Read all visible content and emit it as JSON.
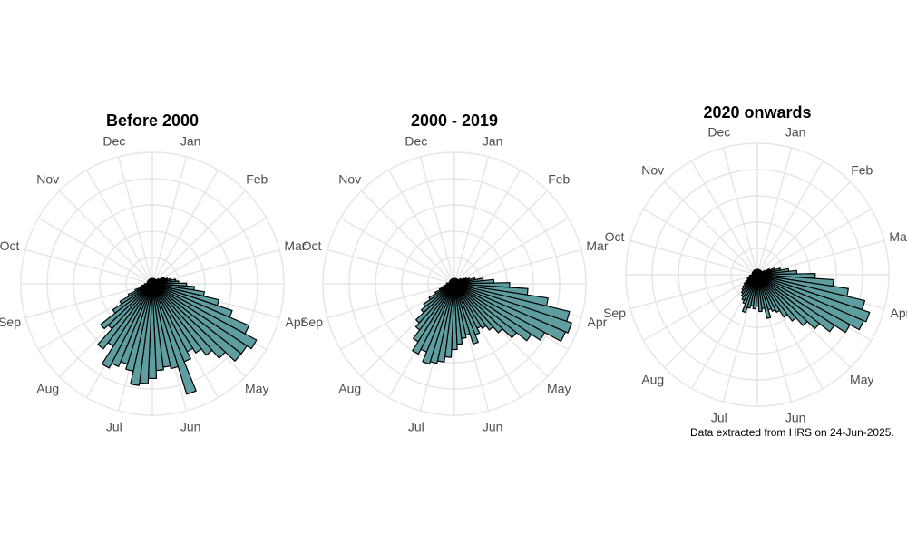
{
  "caption": "Data extracted from HRS on 24-Jun-2025.",
  "colors": {
    "bar_fill": "#5f9ea0",
    "bar_stroke": "#000000",
    "grid": "#e6e6e6",
    "label": "#4d4d4d"
  },
  "chart_data": [
    {
      "type": "bar",
      "subtype": "polar-rose",
      "title": "Before 2000",
      "months": [
        "Jan",
        "Feb",
        "Mar",
        "Apr",
        "May",
        "Jun",
        "Jul",
        "Aug",
        "Sep",
        "Oct",
        "Nov",
        "Dec"
      ],
      "grid": true,
      "rmax": 5,
      "series": [
        {
          "values": [
            0.2,
            0.2,
            0.2,
            0.2,
            0.2,
            0.2,
            0.2,
            0.2,
            0.2,
            0.2,
            0.3,
            0.3,
            0.5,
            0.5,
            0.6,
            0.7,
            0.9,
            1.0,
            1.3,
            1.6,
            2.0,
            2.6,
            3.2,
            4.0,
            4.5,
            4.3,
            4.3,
            3.8,
            3.4,
            3.1,
            2.9,
            3.2,
            4.4,
            3.3,
            3.2,
            3.3,
            3.6,
            3.8,
            3.9,
            3.4,
            3.2,
            3.4,
            3.6,
            2.8,
            3.1,
            2.3,
            2.5,
            1.8,
            1.4,
            1.0,
            0.7,
            0.5,
            0.4,
            0.3,
            0.3,
            0.2,
            0.2,
            0.2,
            0.2,
            0.2,
            0.2,
            0.2,
            0.2,
            0.2,
            0.2,
            0.2,
            0.2,
            0.2,
            0.2,
            0.2,
            0.2,
            0.2,
            0.2
          ]
        }
      ]
    },
    {
      "type": "bar",
      "subtype": "polar-rose",
      "title": "2000 - 2019",
      "months": [
        "Jan",
        "Feb",
        "Mar",
        "Apr",
        "May",
        "Jun",
        "Jul",
        "Aug",
        "Sep",
        "Oct",
        "Nov",
        "Dec"
      ],
      "grid": true,
      "rmax": 5,
      "series": [
        {
          "values": [
            0.2,
            0.2,
            0.2,
            0.2,
            0.2,
            0.2,
            0.2,
            0.2,
            0.2,
            0.2,
            0.3,
            0.3,
            0.4,
            0.5,
            0.6,
            0.8,
            1.1,
            1.5,
            2.1,
            2.8,
            3.6,
            4.5,
            4.7,
            4.6,
            3.9,
            3.5,
            3.0,
            2.5,
            2.2,
            2.0,
            1.9,
            2.1,
            2.4,
            2.0,
            2.1,
            2.3,
            2.5,
            2.8,
            3.0,
            3.1,
            3.2,
            2.8,
            3.0,
            2.6,
            2.2,
            2.0,
            1.6,
            1.4,
            1.1,
            0.8,
            0.6,
            0.5,
            0.4,
            0.3,
            0.3,
            0.3,
            0.2,
            0.2,
            0.2,
            0.2,
            0.2,
            0.2,
            0.2,
            0.2,
            0.2,
            0.2,
            0.2,
            0.2,
            0.2,
            0.2,
            0.2,
            0.2,
            0.2
          ]
        }
      ]
    },
    {
      "type": "bar",
      "subtype": "polar-rose",
      "title": "2020 onwards",
      "months": [
        "Jan",
        "Feb",
        "Mar",
        "Apr",
        "May",
        "Jun",
        "Jul",
        "Aug",
        "Sep",
        "Oct",
        "Nov",
        "Dec"
      ],
      "grid": true,
      "rmax": 5,
      "series": [
        {
          "values": [
            0.2,
            0.2,
            0.2,
            0.2,
            0.2,
            0.2,
            0.2,
            0.2,
            0.2,
            0.2,
            0.2,
            0.2,
            0.3,
            0.5,
            0.7,
            0.9,
            1.2,
            1.5,
            2.2,
            2.9,
            3.5,
            4.2,
            4.5,
            4.4,
            4.0,
            3.5,
            3.0,
            2.6,
            2.2,
            1.9,
            1.6,
            1.5,
            1.4,
            1.7,
            1.3,
            1.4,
            1.2,
            1.3,
            1.2,
            1.3,
            1.5,
            1.2,
            1.1,
            1.0,
            0.9,
            0.8,
            0.7,
            0.6,
            0.5,
            0.4,
            0.4,
            0.3,
            0.3,
            0.3,
            0.2,
            0.2,
            0.2,
            0.2,
            0.2,
            0.2,
            0.2,
            0.2,
            0.2,
            0.2,
            0.2,
            0.2,
            0.2,
            0.2,
            0.2,
            0.2,
            0.2,
            0.2,
            0.2
          ]
        }
      ]
    }
  ]
}
